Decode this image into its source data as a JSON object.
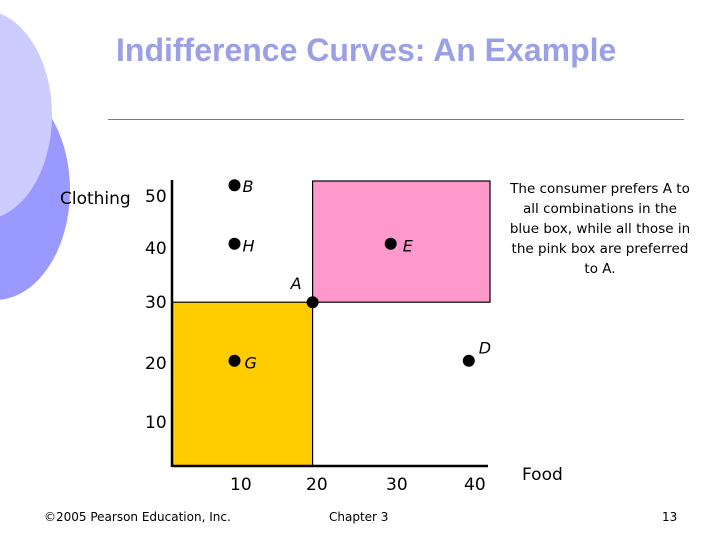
{
  "slide": {
    "title": "Indifference Curves: An Example",
    "note": "The consumer prefers A to all combinations in the blue box, while all those in the pink box are preferred to A.",
    "footer": {
      "copyright": "©2005 Pearson Education, Inc.",
      "chapter": "Chapter 3",
      "page": "13"
    }
  },
  "diagram": {
    "x_axis_label": "Food",
    "y_axis_label": "Clothing",
    "x_ticks": [
      "10",
      "20",
      "30",
      "40"
    ],
    "y_ticks": [
      "50",
      "40",
      "30",
      "20",
      "10"
    ],
    "points": [
      {
        "label": "B",
        "food": 10,
        "clothing": 50
      },
      {
        "label": "H",
        "food": 10,
        "clothing": 40
      },
      {
        "label": "E",
        "food": 30,
        "clothing": 40
      },
      {
        "label": "A",
        "food": 20,
        "clothing": 30
      },
      {
        "label": "G",
        "food": 10,
        "clothing": 20
      },
      {
        "label": "D",
        "food": 40,
        "clothing": 20
      }
    ],
    "colors": {
      "preferred_box": "#ff99cc",
      "less_preferred_box": "#ffcc00",
      "slide_accent": "#9aa0e6"
    }
  }
}
